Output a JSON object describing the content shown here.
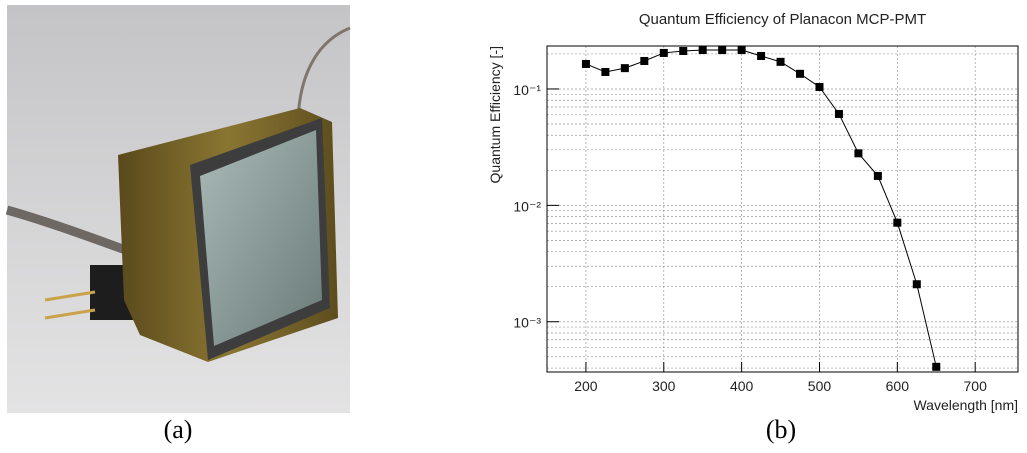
{
  "chart_data": {
    "type": "line",
    "title": "Quantum Efficiency of Planacon MCP-PMT",
    "xlabel": "Wavelength [nm]",
    "ylabel": "Quantum Efficiency [-]",
    "x": [
      200,
      225,
      250,
      275,
      300,
      325,
      350,
      375,
      400,
      425,
      450,
      475,
      500,
      525,
      550,
      575,
      600,
      625,
      650
    ],
    "values": [
      0.164,
      0.14,
      0.151,
      0.174,
      0.204,
      0.212,
      0.216,
      0.216,
      0.216,
      0.192,
      0.171,
      0.135,
      0.104,
      0.061,
      0.028,
      0.0179,
      0.0071,
      0.0021,
      0.00041
    ],
    "color": "#000000",
    "xlim": [
      150,
      755
    ],
    "ylim": [
      0.00037,
      0.234
    ],
    "xticks": [
      200,
      300,
      400,
      500,
      600,
      700
    ],
    "yticks": [
      {
        "value": 0.001,
        "label": "10⁻³"
      },
      {
        "value": 0.01,
        "label": "10⁻²"
      },
      {
        "value": 0.1,
        "label": "10⁻¹"
      }
    ],
    "yminor": [
      0.0004,
      0.0005,
      0.0006,
      0.0007,
      0.0008,
      0.0009,
      0.002,
      0.003,
      0.004,
      0.005,
      0.006,
      0.007,
      0.008,
      0.009,
      0.02,
      0.03,
      0.04,
      0.05,
      0.06,
      0.07,
      0.08,
      0.09,
      0.2
    ],
    "ylog": true,
    "grid": true
  },
  "captions": [
    "(a)",
    "(b)"
  ]
}
